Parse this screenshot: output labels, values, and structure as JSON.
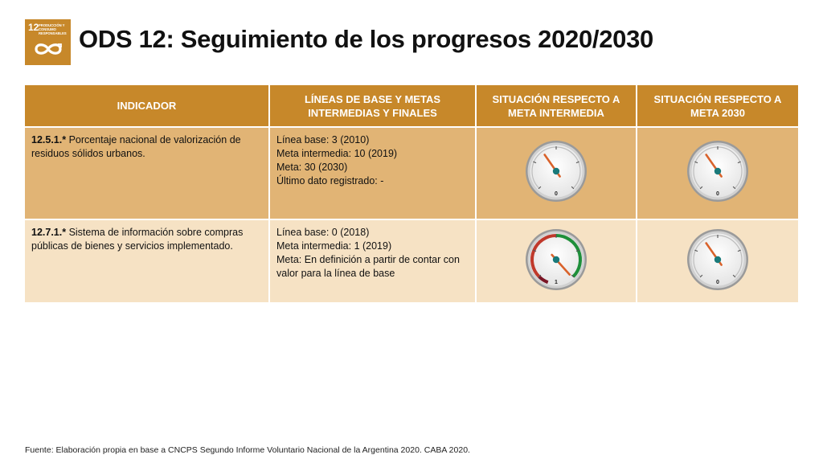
{
  "logo": {
    "number": "12",
    "text": "PRODUCCIÓN Y CONSUMO RESPONSABLES",
    "icon": "infinity-icon",
    "color": "#c7882a"
  },
  "title": "ODS 12: Seguimiento de los progresos 2020/2030",
  "table": {
    "headers": [
      "INDICADOR",
      "LÍNEAS DE BASE Y METAS INTERMEDIAS Y FINALES",
      "SITUACIÓN RESPECTO A META INTERMEDIA",
      "SITUACIÓN RESPECTO A META 2030"
    ],
    "rows": [
      {
        "code": "12.5.1.*",
        "indicator": " Porcentaje nacional de valorización de residuos sólidos urbanos.",
        "lines": [
          "Línea base: 3 (2010)",
          "Meta intermedia: 10 (2019)",
          "Meta: 30 (2030)",
          "Último dato registrado: -"
        ],
        "gauge_intermedia": {
          "label": "0",
          "style": "gray",
          "icon": "gauge-icon"
        },
        "gauge_2030": {
          "label": "0",
          "style": "gray",
          "icon": "gauge-icon"
        }
      },
      {
        "code": "12.7.1.*",
        "indicator": " Sistema de información sobre compras públicas de bienes y servicios implementado.",
        "lines": [
          "Línea base: 0 (2018)",
          "Meta intermedia: 1 (2019)",
          "Meta: En definición a partir de contar con valor para la línea de base"
        ],
        "gauge_intermedia": {
          "label": "1",
          "style": "red-green",
          "icon": "gauge-icon"
        },
        "gauge_2030": {
          "label": "0",
          "style": "gray",
          "icon": "gauge-icon"
        }
      }
    ]
  },
  "colors": {
    "header": "#c7882a",
    "row1": "#e1b475",
    "row2": "#f6e2c4",
    "gauge_red": "#c0392b",
    "gauge_green": "#1e8f3a",
    "needle": "#d9622b",
    "hub": "#1a7a7a"
  },
  "source": "Fuente: Elaboración propia en base a CNCPS Segundo Informe Voluntario Nacional de la Argentina 2020. CABA 2020."
}
